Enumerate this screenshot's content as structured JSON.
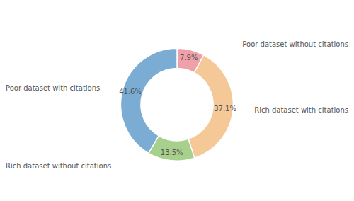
{
  "chart_data": {
    "type": "donut",
    "categories": [
      "Poor dataset without citations",
      "Rich dataset with citations",
      "Rich dataset without citations",
      "Poor dataset with citations"
    ],
    "values": [
      7.9,
      37.1,
      13.5,
      41.6
    ],
    "value_labels": [
      "7.9%",
      "37.1%",
      "13.5%",
      "41.6%"
    ],
    "colors": [
      "#f0a0a8",
      "#f5c897",
      "#a8d08d",
      "#7badd4"
    ],
    "data_labels": true
  }
}
